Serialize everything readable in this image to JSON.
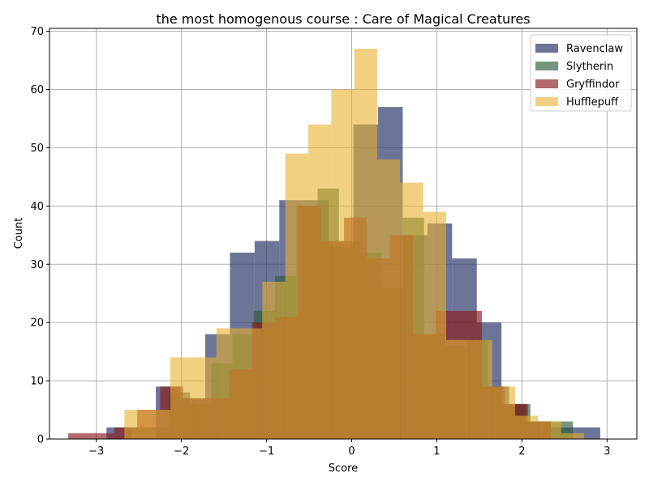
{
  "chart_data": {
    "type": "histogram",
    "title": "the most homogenous course : Care of Magical Creatures",
    "xlabel": "Score",
    "ylabel": "Count",
    "xlim": [
      -3.55,
      3.35
    ],
    "ylim": [
      0,
      70.5
    ],
    "xticks": [
      -3,
      -2,
      -1,
      0,
      1,
      2,
      3
    ],
    "yticks": [
      0,
      10,
      20,
      30,
      40,
      50,
      60,
      70
    ],
    "xtick_labels": [
      "−3",
      "−2",
      "−1",
      "0",
      "1",
      "2",
      "3"
    ],
    "ytick_labels": [
      "0",
      "10",
      "20",
      "30",
      "40",
      "50",
      "60",
      "70"
    ],
    "grid": true,
    "legend_position": "top-right",
    "series": [
      {
        "name": "Ravenclaw",
        "color": "#2e3a6b",
        "opacity": 0.7,
        "edges": [
          -2.88,
          -2.59,
          -2.3,
          -2.01,
          -1.72,
          -1.43,
          -1.14,
          -0.85,
          -0.56,
          -0.27,
          0.02,
          0.31,
          0.6,
          0.89,
          1.18,
          1.47,
          1.76,
          2.05,
          2.34,
          2.63,
          2.92
        ],
        "counts": [
          2,
          0,
          9,
          7,
          18,
          32,
          34,
          41,
          41,
          33,
          54,
          57,
          35,
          37,
          31,
          20,
          6,
          3,
          2,
          2
        ]
      },
      {
        "name": "Slytherin",
        "color": "#2e5a3e",
        "opacity": 0.65,
        "edges": [
          -2.65,
          -2.4,
          -2.15,
          -1.9,
          -1.65,
          -1.4,
          -1.15,
          -0.9,
          -0.65,
          -0.4,
          -0.15,
          0.1,
          0.35,
          0.6,
          0.85,
          1.1,
          1.35,
          1.6,
          1.85,
          2.1,
          2.35,
          2.6
        ],
        "counts": [
          2,
          2,
          8,
          6,
          13,
          18,
          22,
          28,
          40,
          43,
          34,
          32,
          26,
          38,
          18,
          16,
          17,
          9,
          6,
          3,
          3,
          1
        ]
      },
      {
        "name": "Gryffindor",
        "color": "#8b1a1a",
        "opacity": 0.65,
        "edges": [
          -3.33,
          -3.06,
          -2.79,
          -2.52,
          -2.25,
          -1.98,
          -1.71,
          -1.44,
          -1.17,
          -0.9,
          -0.63,
          -0.36,
          -0.09,
          0.18,
          0.45,
          0.72,
          0.99,
          1.26,
          1.53,
          1.8,
          2.07,
          2.34
        ],
        "counts": [
          1,
          1,
          2,
          5,
          9,
          7,
          7,
          12,
          20,
          21,
          40,
          34,
          38,
          31,
          35,
          18,
          22,
          22,
          9,
          6,
          3,
          2
        ]
      },
      {
        "name": "Hufflepuff",
        "color": "#e8b12e",
        "opacity": 0.6,
        "edges": [
          -2.67,
          -2.4,
          -2.13,
          -1.86,
          -1.59,
          -1.32,
          -1.05,
          -0.78,
          -0.51,
          -0.24,
          0.03,
          0.3,
          0.57,
          0.84,
          1.11,
          1.38,
          1.65,
          1.92,
          2.19,
          2.46,
          2.73
        ],
        "counts": [
          5,
          5,
          14,
          14,
          19,
          19,
          27,
          49,
          54,
          60,
          67,
          48,
          44,
          39,
          17,
          17,
          9,
          4,
          3,
          1
        ]
      }
    ]
  }
}
